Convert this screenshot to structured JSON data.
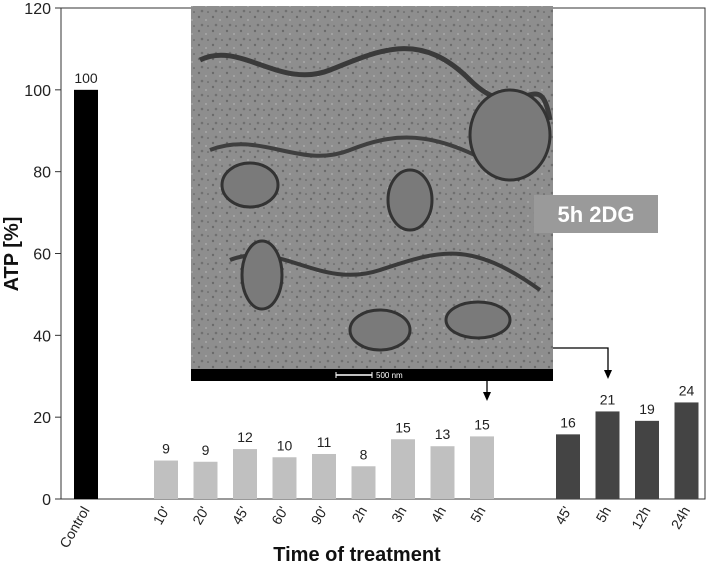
{
  "chart_data": {
    "type": "bar",
    "xlabel": "Time of treatment",
    "ylabel": "ATP [%]",
    "ylim": [
      0,
      120
    ],
    "yticks": [
      0,
      20,
      40,
      60,
      80,
      100,
      120
    ],
    "grid": false,
    "groups": [
      {
        "color": "#000000",
        "categories": [
          "Control"
        ],
        "values": [
          100
        ]
      },
      {
        "color": "#c0c0c0",
        "categories": [
          "10'",
          "20'",
          "45'",
          "60'",
          "90'",
          "2h",
          "3h",
          "4h",
          "5h"
        ],
        "values": [
          9.4,
          9.1,
          12.2,
          10.2,
          11.0,
          8.0,
          14.6,
          12.9,
          15.3
        ]
      },
      {
        "color": "#444444",
        "categories": [
          "45'",
          "5h",
          "12h",
          "24h"
        ],
        "values": [
          15.8,
          21.4,
          19.1,
          23.6
        ]
      }
    ],
    "data_labels": [
      "100",
      "9",
      "9",
      "12",
      "10",
      "11",
      "8",
      "15",
      "13",
      "15",
      "16",
      "21",
      "19",
      "24"
    ]
  },
  "inset": {
    "tag": "5h 2DG",
    "scale_bar": "500 nm"
  }
}
